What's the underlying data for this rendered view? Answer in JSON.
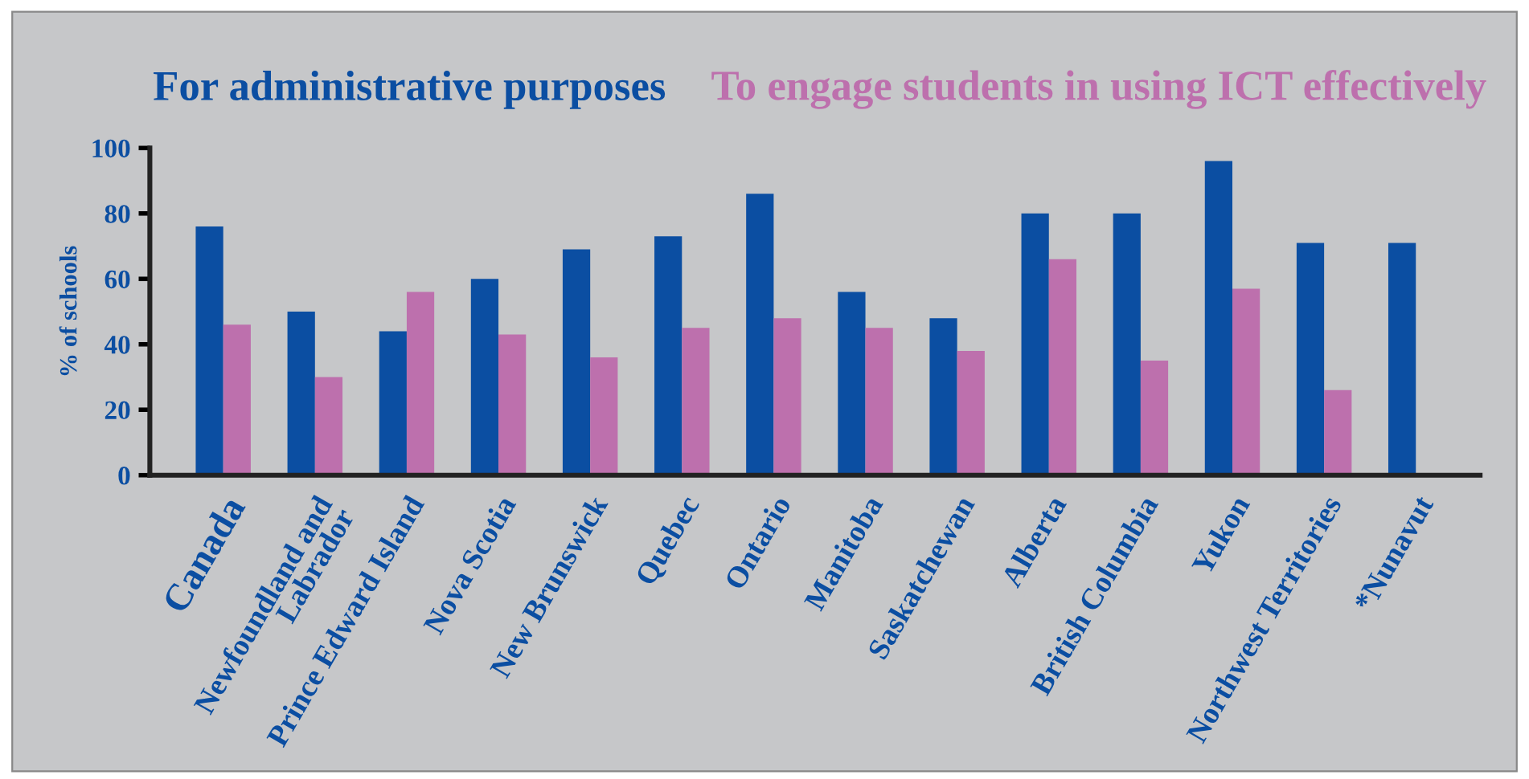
{
  "chart_data": {
    "type": "bar",
    "categories": [
      "Canada",
      "Newfoundland and\nLabrador",
      "Prince Edward Island",
      "Nova Scotia",
      "New Brunswick",
      "Quebec",
      "Ontario",
      "Manitoba",
      "Saskatchewan",
      "Alberta",
      "British Columbia",
      "Yukon",
      "Northwest Territories",
      "*Nunavut"
    ],
    "series": [
      {
        "name": "For administrative purposes",
        "color": "#0b4ea2",
        "values": [
          76,
          50,
          44,
          60,
          69,
          73,
          86,
          56,
          48,
          80,
          80,
          96,
          71,
          71
        ]
      },
      {
        "name": "To engage students in using ICT effectively",
        "color": "#bd70ad",
        "values": [
          46,
          30,
          56,
          43,
          36,
          45,
          48,
          45,
          38,
          66,
          35,
          57,
          26,
          null
        ]
      }
    ],
    "ylabel": "% of schools",
    "ylim": [
      0,
      100
    ],
    "yticks": [
      0,
      20,
      40,
      60,
      80,
      100
    ],
    "grid": false,
    "legend": "top"
  }
}
